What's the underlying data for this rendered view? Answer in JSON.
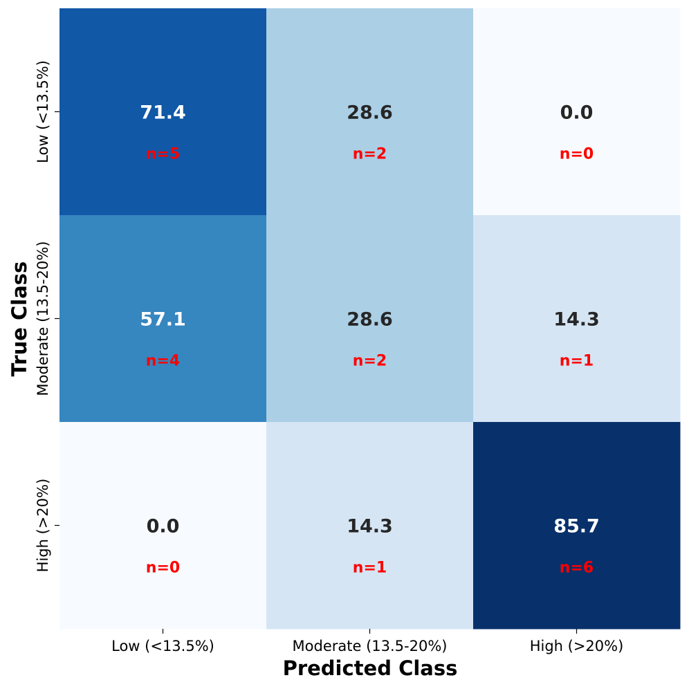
{
  "chart_data": {
    "type": "heatmap",
    "title": "",
    "xlabel": "Predicted Class",
    "ylabel": "True Class",
    "x_categories": [
      "Low (<13.5%)",
      "Moderate (13.5-20%)",
      "High (>20%)"
    ],
    "y_categories": [
      "Low (<13.5%)",
      "Moderate (13.5-20%)",
      "High (>20%)"
    ],
    "values": [
      [
        71.4,
        28.6,
        0.0
      ],
      [
        57.1,
        28.6,
        14.3
      ],
      [
        0.0,
        14.3,
        85.7
      ]
    ],
    "value_labels": [
      [
        "71.4",
        "28.6",
        "0.0"
      ],
      [
        "57.1",
        "28.6",
        "14.3"
      ],
      [
        "0.0",
        "14.3",
        "85.7"
      ]
    ],
    "count_labels": [
      [
        "n=5",
        "n=2",
        "n=0"
      ],
      [
        "n=4",
        "n=2",
        "n=1"
      ],
      [
        "n=0",
        "n=1",
        "n=6"
      ]
    ],
    "value_range": [
      0,
      85.7
    ],
    "colormap": "Blues",
    "grid": false,
    "colorbar": false
  },
  "colors": {
    "count_label": "#ff0000",
    "dark_text": "#262626",
    "light_text": "#ffffff",
    "cell_colors": [
      [
        "#1158a7",
        "#abcfe5",
        "#f7fbff"
      ],
      [
        "#3686c0",
        "#abcfe5",
        "#d5e5f4"
      ],
      [
        "#f7fbff",
        "#d5e5f4",
        "#08306b"
      ]
    ]
  }
}
